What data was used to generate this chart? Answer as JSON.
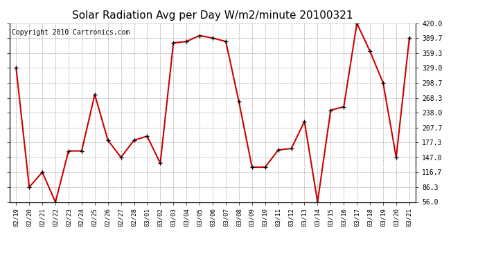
{
  "title": "Solar Radiation Avg per Day W/m2/minute 20100321",
  "copyright": "Copyright 2010 Cartronics.com",
  "dates": [
    "02/19",
    "02/20",
    "02/21",
    "02/22",
    "02/23",
    "02/24",
    "02/25",
    "02/26",
    "02/27",
    "02/28",
    "03/01",
    "03/02",
    "03/03",
    "03/04",
    "03/05",
    "03/06",
    "03/07",
    "03/08",
    "03/09",
    "03/10",
    "03/11",
    "03/12",
    "03/13",
    "03/14",
    "03/15",
    "03/16",
    "03/17",
    "03/18",
    "03/19",
    "03/20",
    "03/21"
  ],
  "values": [
    329.0,
    86.3,
    116.7,
    56.0,
    160.0,
    160.0,
    275.0,
    182.0,
    147.0,
    182.0,
    190.0,
    135.0,
    380.0,
    383.0,
    395.0,
    390.0,
    383.0,
    260.0,
    127.0,
    127.0,
    162.0,
    165.0,
    220.0,
    56.0,
    243.0,
    250.0,
    420.0,
    363.0,
    298.7,
    147.0,
    390.0
  ],
  "ymin": 56.0,
  "ymax": 420.0,
  "yticks": [
    56.0,
    86.3,
    116.7,
    147.0,
    177.3,
    207.7,
    238.0,
    268.3,
    298.7,
    329.0,
    359.3,
    389.7,
    420.0
  ],
  "line_color": "#cc0000",
  "marker": "+",
  "marker_color": "#000000",
  "bg_color": "#ffffff",
  "grid_color": "#aaaaaa",
  "title_fontsize": 11,
  "copyright_fontsize": 7
}
